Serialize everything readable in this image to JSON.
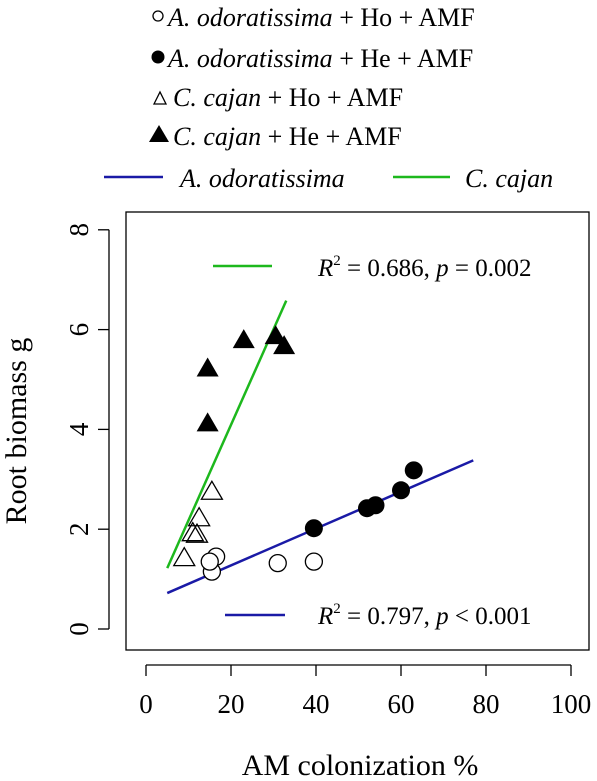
{
  "colors": {
    "a_odoratissima_line": "#1a1aa6",
    "c_cajan_line": "#1db81d",
    "points": "#000000",
    "background": "#ffffff"
  },
  "legend": {
    "entries": [
      {
        "marker": "open-circle",
        "species": "A. odoratissima",
        "rest": " + Ho + AMF"
      },
      {
        "marker": "filled-circle",
        "species": "A. odoratissima",
        "rest": " + He + AMF"
      },
      {
        "marker": "open-triangle",
        "species": "C. cajan",
        "rest": " + Ho + AMF"
      },
      {
        "marker": "filled-triangle",
        "species": "C. cajan",
        "rest": " + He + AMF"
      }
    ],
    "lines": [
      {
        "label": "A. odoratissima",
        "color": "#1a1aa6"
      },
      {
        "label": "C. cajan",
        "color": "#1db81d"
      }
    ]
  },
  "annotations": {
    "c_cajan": {
      "r": "R",
      "sup": "2",
      "text": " = 0.686, ",
      "p": "p",
      "tail": " = 0.002"
    },
    "a_odoratissima": {
      "r": "R",
      "sup": "2",
      "text": " = 0.797, ",
      "p": "p",
      "tail": " < 0.001"
    }
  },
  "chart_data": {
    "type": "scatter",
    "xlabel": "AM colonization %",
    "ylabel": "Root biomass g",
    "xlim": [
      0,
      100
    ],
    "ylim": [
      0,
      8
    ],
    "xticks": [
      0,
      20,
      40,
      60,
      80,
      100
    ],
    "yticks": [
      0,
      2,
      4,
      6,
      8
    ],
    "series": [
      {
        "name": "A. odoratissima + Ho + AMF",
        "marker": "open-circle",
        "points": [
          [
            15.5,
            1.15
          ],
          [
            16.5,
            1.45
          ],
          [
            15.0,
            1.35
          ],
          [
            31,
            1.32
          ],
          [
            39.5,
            1.35
          ]
        ]
      },
      {
        "name": "A. odoratissima + He + AMF",
        "marker": "filled-circle",
        "points": [
          [
            39.5,
            2.02
          ],
          [
            52,
            2.42
          ],
          [
            54,
            2.48
          ],
          [
            60,
            2.78
          ],
          [
            63,
            3.18
          ]
        ]
      },
      {
        "name": "C. cajan + Ho + AMF",
        "marker": "open-triangle",
        "points": [
          [
            9,
            1.45
          ],
          [
            11,
            1.95
          ],
          [
            12,
            1.92
          ],
          [
            12.5,
            2.25
          ],
          [
            15.5,
            2.78
          ]
        ]
      },
      {
        "name": "C. cajan + He + AMF",
        "marker": "filled-triangle",
        "points": [
          [
            14.5,
            4.15
          ],
          [
            14.5,
            5.25
          ],
          [
            23,
            5.82
          ],
          [
            30.5,
            5.9
          ],
          [
            32.5,
            5.7
          ]
        ]
      }
    ],
    "fits": [
      {
        "name": "A. odoratissima",
        "color": "#1a1aa6",
        "x": [
          5,
          77
        ],
        "y": [
          0.72,
          3.38
        ]
      },
      {
        "name": "C. cajan",
        "color": "#1db81d",
        "x": [
          5,
          33
        ],
        "y": [
          1.22,
          6.58
        ]
      }
    ],
    "legend_position": "top",
    "grid": false
  }
}
